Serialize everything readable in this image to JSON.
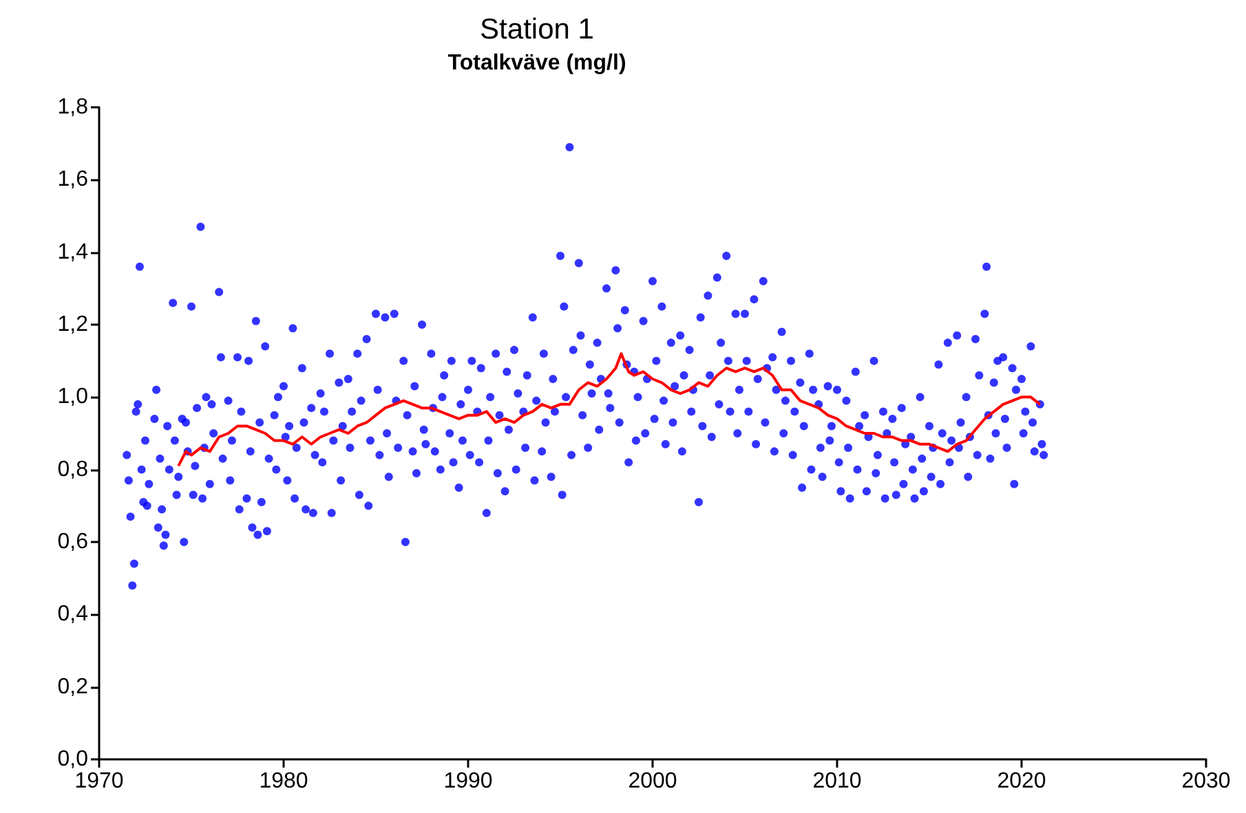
{
  "chart_data": {
    "type": "scatter",
    "title": "Station 1",
    "subtitle": "Totalkväve (mg/l)",
    "xlim": [
      1970,
      2030
    ],
    "xticks": [
      1970,
      1980,
      1990,
      2000,
      2010,
      2020,
      2030
    ],
    "ylim": [
      0,
      1.8
    ],
    "yticks": [
      {
        "value": 0,
        "label": "0,0"
      },
      {
        "value": 0.2,
        "label": "0,2"
      },
      {
        "value": 0.4,
        "label": "0,4"
      },
      {
        "value": 0.6,
        "label": "0,6"
      },
      {
        "value": 0.8,
        "label": "0,8"
      },
      {
        "value": 1,
        "label": "1,0"
      },
      {
        "value": 1.2,
        "label": "1,2"
      },
      {
        "value": 1.4,
        "label": "1,4"
      },
      {
        "value": 1.6,
        "label": "1,6"
      },
      {
        "value": 1.8,
        "label": "1,8"
      }
    ],
    "grid": false,
    "marker": "circle",
    "series": [
      {
        "color": "#0000ff",
        "x": [
          1971.5,
          1971.6,
          1971.7,
          1971.8,
          1971.9,
          1972,
          1972.1,
          1972.2,
          1972.3,
          1972.4,
          1972.5,
          1972.6,
          1972.7,
          1973,
          1973.1,
          1973.2,
          1973.3,
          1973.4,
          1973.5,
          1973.6,
          1973.7,
          1973.8,
          1974,
          1974.1,
          1974.2,
          1974.3,
          1974.5,
          1974.6,
          1974.7,
          1974.8,
          1975,
          1975.1,
          1975.2,
          1975.3,
          1975.5,
          1975.6,
          1975.7,
          1975.8,
          1976,
          1976.1,
          1976.2,
          1976.5,
          1976.6,
          1976.7,
          1977,
          1977.1,
          1977.2,
          1977.5,
          1977.6,
          1977.7,
          1978,
          1978.1,
          1978.2,
          1978.3,
          1978.5,
          1978.6,
          1978.7,
          1978.8,
          1979,
          1979.1,
          1979.2,
          1979.5,
          1979.6,
          1979.7,
          1980,
          1980.1,
          1980.2,
          1980.3,
          1980.5,
          1980.6,
          1980.7,
          1981,
          1981.1,
          1981.2,
          1981.5,
          1981.6,
          1981.7,
          1982,
          1982.1,
          1982.2,
          1982.5,
          1982.6,
          1982.7,
          1983,
          1983.1,
          1983.2,
          1983.5,
          1983.6,
          1983.7,
          1984,
          1984.1,
          1984.2,
          1984.5,
          1984.6,
          1984.7,
          1985,
          1985.1,
          1985.2,
          1985.5,
          1985.6,
          1985.7,
          1986,
          1986.1,
          1986.2,
          1986.5,
          1986.6,
          1986.7,
          1987,
          1987.1,
          1987.2,
          1987.5,
          1987.6,
          1987.7,
          1988,
          1988.1,
          1988.2,
          1988.5,
          1988.6,
          1988.7,
          1989,
          1989.1,
          1989.2,
          1989.5,
          1989.6,
          1989.7,
          1990,
          1990.1,
          1990.2,
          1990.5,
          1990.6,
          1990.7,
          1991,
          1991.1,
          1991.2,
          1991.5,
          1991.6,
          1991.7,
          1992,
          1992.1,
          1992.2,
          1992.5,
          1992.6,
          1992.7,
          1993,
          1993.1,
          1993.2,
          1993.5,
          1993.6,
          1993.7,
          1994,
          1994.1,
          1994.2,
          1994.5,
          1994.6,
          1994.7,
          1995,
          1995.1,
          1995.2,
          1995.3,
          1995.5,
          1995.6,
          1995.7,
          1996,
          1996.1,
          1996.2,
          1996.5,
          1996.6,
          1996.7,
          1997,
          1997.1,
          1997.2,
          1997.5,
          1997.6,
          1997.7,
          1998,
          1998.1,
          1998.2,
          1998.5,
          1998.6,
          1998.7,
          1999,
          1999.1,
          1999.2,
          1999.5,
          1999.6,
          1999.7,
          2000,
          2000.1,
          2000.2,
          2000.5,
          2000.6,
          2000.7,
          2001,
          2001.1,
          2001.2,
          2001.5,
          2001.6,
          2001.7,
          2002,
          2002.1,
          2002.2,
          2002.5,
          2002.6,
          2002.7,
          2003,
          2003.1,
          2003.2,
          2003.5,
          2003.6,
          2003.7,
          2004,
          2004.1,
          2004.2,
          2004.5,
          2004.6,
          2004.7,
          2005,
          2005.1,
          2005.2,
          2005.5,
          2005.6,
          2005.7,
          2006,
          2006.1,
          2006.2,
          2006.5,
          2006.6,
          2006.7,
          2007,
          2007.1,
          2007.2,
          2007.5,
          2007.6,
          2007.7,
          2008,
          2008.1,
          2008.2,
          2008.5,
          2008.6,
          2008.7,
          2009,
          2009.1,
          2009.2,
          2009.5,
          2009.6,
          2009.7,
          2010,
          2010.1,
          2010.2,
          2010.5,
          2010.6,
          2010.7,
          2011,
          2011.1,
          2011.2,
          2011.5,
          2011.6,
          2011.7,
          2012,
          2012.1,
          2012.2,
          2012.5,
          2012.6,
          2012.7,
          2013,
          2013.1,
          2013.2,
          2013.5,
          2013.6,
          2013.7,
          2014,
          2014.1,
          2014.2,
          2014.5,
          2014.6,
          2014.7,
          2015,
          2015.1,
          2015.2,
          2015.5,
          2015.6,
          2015.7,
          2016,
          2016.1,
          2016.2,
          2016.5,
          2016.6,
          2016.7,
          2017,
          2017.1,
          2017.2,
          2017.5,
          2017.6,
          2017.7,
          2018,
          2018.1,
          2018.2,
          2018.3,
          2018.5,
          2018.6,
          2018.7,
          2019,
          2019.1,
          2019.2,
          2019.5,
          2019.6,
          2019.7,
          2020,
          2020.1,
          2020.2,
          2020.5,
          2020.6,
          2020.7,
          2021,
          2021.1,
          2021.2
        ],
        "values": [
          0.84,
          0.77,
          0.67,
          0.48,
          0.54,
          0.96,
          0.98,
          1.36,
          0.8,
          0.71,
          0.88,
          0.7,
          0.76,
          0.94,
          1.02,
          0.64,
          0.83,
          0.69,
          0.59,
          0.62,
          0.92,
          0.8,
          1.26,
          0.88,
          0.73,
          0.78,
          0.94,
          0.6,
          0.93,
          0.85,
          1.25,
          0.73,
          0.81,
          0.97,
          1.47,
          0.72,
          0.86,
          1.0,
          0.76,
          0.98,
          0.9,
          1.29,
          1.11,
          0.83,
          0.99,
          0.77,
          0.88,
          1.11,
          0.69,
          0.96,
          0.72,
          1.1,
          0.85,
          0.64,
          1.21,
          0.62,
          0.93,
          0.71,
          1.14,
          0.63,
          0.83,
          0.95,
          0.8,
          1.0,
          1.03,
          0.89,
          0.77,
          0.92,
          1.19,
          0.72,
          0.86,
          1.08,
          0.93,
          0.69,
          0.97,
          0.68,
          0.84,
          1.01,
          0.82,
          0.96,
          1.12,
          0.68,
          0.88,
          1.04,
          0.77,
          0.92,
          1.05,
          0.86,
          0.96,
          1.12,
          0.73,
          0.99,
          1.16,
          0.7,
          0.88,
          1.23,
          1.02,
          0.84,
          1.22,
          0.9,
          0.78,
          1.23,
          0.99,
          0.86,
          1.1,
          0.6,
          0.95,
          0.85,
          1.03,
          0.79,
          1.2,
          0.91,
          0.87,
          1.12,
          0.97,
          0.85,
          0.8,
          1.0,
          1.06,
          0.9,
          1.1,
          0.82,
          0.75,
          0.98,
          0.88,
          1.02,
          0.84,
          1.1,
          0.96,
          0.82,
          1.08,
          0.68,
          0.88,
          1.0,
          1.12,
          0.79,
          0.95,
          0.74,
          1.07,
          0.91,
          1.13,
          0.8,
          1.01,
          0.96,
          0.86,
          1.06,
          1.22,
          0.77,
          0.99,
          0.85,
          1.12,
          0.93,
          0.78,
          1.05,
          0.96,
          1.39,
          0.73,
          1.25,
          1.0,
          1.69,
          0.84,
          1.13,
          1.37,
          1.17,
          0.95,
          0.86,
          1.09,
          1.01,
          1.15,
          0.91,
          1.05,
          1.3,
          1.01,
          0.97,
          1.35,
          1.19,
          0.93,
          1.24,
          1.09,
          0.82,
          1.07,
          0.88,
          1.0,
          1.21,
          0.9,
          1.05,
          1.32,
          0.94,
          1.1,
          1.25,
          0.99,
          0.87,
          1.15,
          0.93,
          1.03,
          1.17,
          0.85,
          1.06,
          1.13,
          0.96,
          1.02,
          0.71,
          1.22,
          0.92,
          1.28,
          1.06,
          0.89,
          1.33,
          0.98,
          1.15,
          1.39,
          1.1,
          0.96,
          1.23,
          0.9,
          1.02,
          1.23,
          1.1,
          0.96,
          1.27,
          0.87,
          1.05,
          1.32,
          0.93,
          1.08,
          1.11,
          0.85,
          1.02,
          1.18,
          0.9,
          0.99,
          1.1,
          0.84,
          0.96,
          1.04,
          0.75,
          0.92,
          1.12,
          0.8,
          1.02,
          0.98,
          0.86,
          0.78,
          1.03,
          0.88,
          0.92,
          1.02,
          0.82,
          0.74,
          0.99,
          0.86,
          0.72,
          1.07,
          0.8,
          0.92,
          0.95,
          0.74,
          0.89,
          1.1,
          0.79,
          0.84,
          0.96,
          0.72,
          0.9,
          0.94,
          0.82,
          0.73,
          0.97,
          0.76,
          0.87,
          0.89,
          0.8,
          0.72,
          1.0,
          0.83,
          0.74,
          0.92,
          0.78,
          0.86,
          1.09,
          0.76,
          0.9,
          1.15,
          0.82,
          0.88,
          1.17,
          0.86,
          0.93,
          1.0,
          0.78,
          0.89,
          1.16,
          0.84,
          1.06,
          1.23,
          1.36,
          0.95,
          0.83,
          1.04,
          0.9,
          1.1,
          1.11,
          0.94,
          0.86,
          1.08,
          0.76,
          1.02,
          1.05,
          0.9,
          0.96,
          1.14,
          0.93,
          0.85,
          0.98,
          0.87,
          0.84
        ]
      },
      {
        "type": "line",
        "color": "#ff0000",
        "marker": "none",
        "x": [
          1974.3,
          1974.7,
          1975,
          1975.5,
          1976,
          1976.5,
          1977,
          1977.5,
          1978,
          1978.5,
          1979,
          1979.5,
          1980,
          1980.5,
          1981,
          1981.5,
          1982,
          1982.5,
          1983,
          1983.5,
          1984,
          1984.5,
          1985,
          1985.5,
          1986,
          1986.5,
          1987,
          1987.5,
          1988,
          1988.5,
          1989,
          1989.5,
          1990,
          1990.5,
          1991,
          1991.5,
          1992,
          1992.5,
          1993,
          1993.5,
          1994,
          1994.5,
          1995,
          1995.5,
          1996,
          1996.5,
          1997,
          1997.5,
          1998,
          1998.3,
          1998.7,
          1999,
          1999.5,
          2000,
          2000.5,
          2001,
          2001.5,
          2002,
          2002.5,
          2003,
          2003.5,
          2004,
          2004.5,
          2005,
          2005.5,
          2006,
          2006.5,
          2007,
          2007.5,
          2008,
          2008.5,
          2009,
          2009.5,
          2010,
          2010.5,
          2011,
          2011.5,
          2012,
          2012.5,
          2013,
          2013.5,
          2014,
          2014.5,
          2015,
          2015.5,
          2016,
          2016.5,
          2017,
          2017.5,
          2018,
          2018.5,
          2019,
          2019.5,
          2020,
          2020.5,
          2021
        ],
        "values": [
          0.81,
          0.85,
          0.84,
          0.86,
          0.85,
          0.89,
          0.9,
          0.92,
          0.92,
          0.91,
          0.9,
          0.88,
          0.88,
          0.87,
          0.89,
          0.87,
          0.89,
          0.9,
          0.91,
          0.9,
          0.92,
          0.93,
          0.95,
          0.97,
          0.98,
          0.99,
          0.98,
          0.97,
          0.97,
          0.96,
          0.95,
          0.94,
          0.95,
          0.95,
          0.96,
          0.93,
          0.94,
          0.93,
          0.95,
          0.96,
          0.98,
          0.97,
          0.98,
          0.98,
          1.02,
          1.04,
          1.03,
          1.05,
          1.08,
          1.12,
          1.07,
          1.06,
          1.07,
          1.05,
          1.04,
          1.02,
          1.01,
          1.02,
          1.04,
          1.03,
          1.06,
          1.08,
          1.07,
          1.08,
          1.07,
          1.08,
          1.06,
          1.02,
          1.02,
          0.99,
          0.98,
          0.97,
          0.95,
          0.94,
          0.92,
          0.91,
          0.9,
          0.9,
          0.89,
          0.89,
          0.88,
          0.88,
          0.87,
          0.87,
          0.86,
          0.85,
          0.87,
          0.88,
          0.91,
          0.94,
          0.96,
          0.98,
          0.99,
          1.0,
          1.0,
          0.98
        ]
      }
    ]
  }
}
